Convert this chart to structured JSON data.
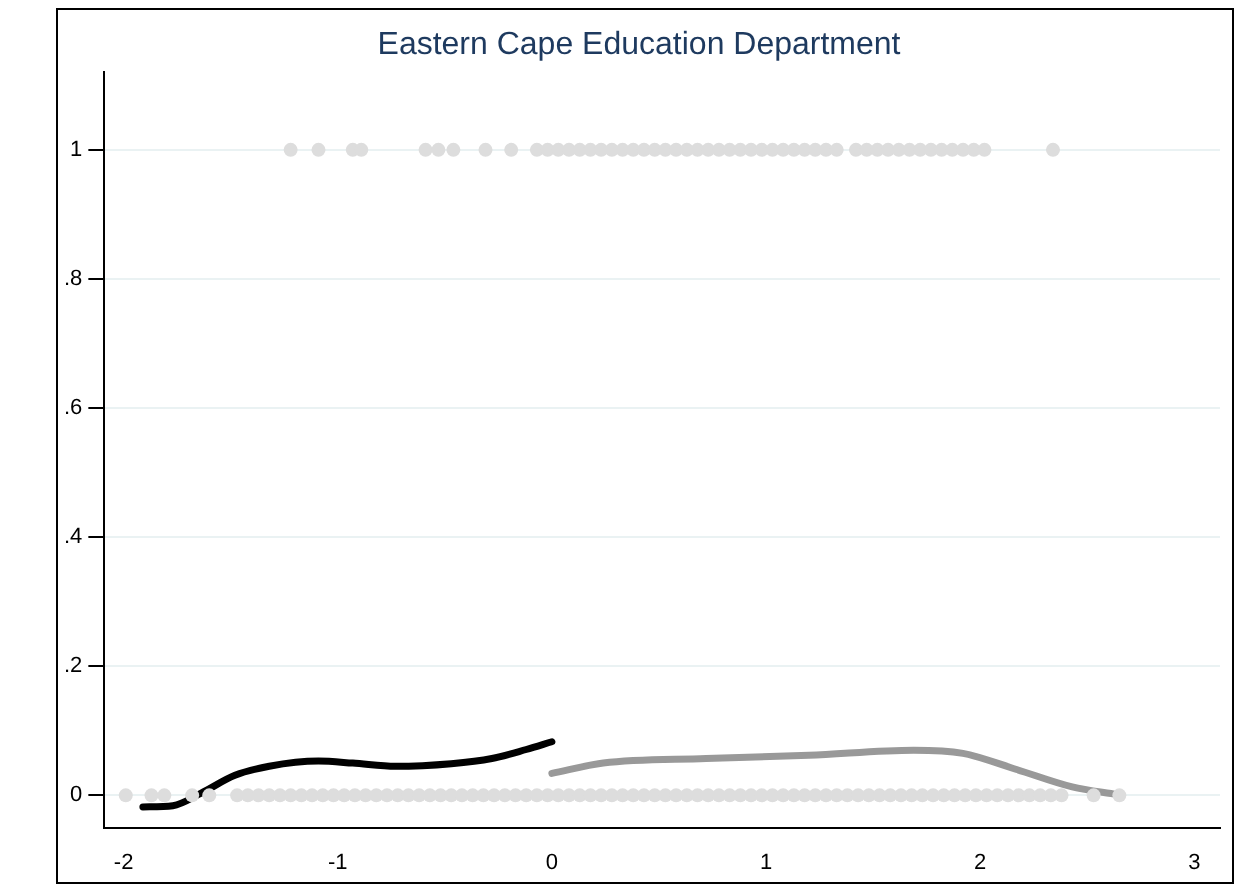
{
  "chart_data": {
    "type": "scatter",
    "title": "Eastern Cape Education Department",
    "xlim": [
      -2.09,
      3.12
    ],
    "ylim": [
      -0.05,
      1.12
    ],
    "xticks": [
      -2,
      -1,
      0,
      1,
      2,
      3
    ],
    "yticks": [
      0,
      {
        "value": 0.2,
        "label": ".2"
      },
      {
        "value": 0.4,
        "label": ".4"
      },
      {
        "value": 0.6,
        "label": ".6"
      },
      {
        "value": 0.8,
        "label": ".8"
      },
      1
    ],
    "grid": "y",
    "legend": false,
    "series": [
      {
        "type": "scatter",
        "marker": "circle",
        "color": "#dddddd",
        "x": [
          -1.99,
          -1.87,
          -1.81,
          -1.68,
          -1.6,
          -1.47,
          -1.42,
          -1.37,
          -1.32,
          -1.27,
          -1.22,
          -1.17,
          -1.12,
          -1.07,
          -1.02,
          -0.97,
          -0.92,
          -0.87,
          -0.82,
          -0.77,
          -0.72,
          -0.67,
          -0.62,
          -0.57,
          -0.52,
          -0.47,
          -0.42,
          -0.37,
          -0.32,
          -0.27,
          -0.22,
          -0.17,
          -0.12,
          -0.07,
          -0.02,
          0.03,
          0.08,
          0.13,
          0.18,
          0.23,
          0.28,
          0.33,
          0.38,
          0.43,
          0.48,
          0.53,
          0.58,
          0.63,
          0.68,
          0.73,
          0.78,
          0.83,
          0.88,
          0.93,
          0.98,
          1.03,
          1.08,
          1.13,
          1.18,
          1.23,
          1.28,
          1.33,
          1.38,
          1.43,
          1.48,
          1.53,
          1.58,
          1.63,
          1.68,
          1.73,
          1.78,
          1.83,
          1.88,
          1.93,
          1.98,
          2.03,
          2.08,
          2.13,
          2.18,
          2.23,
          2.28,
          2.33,
          2.38,
          2.53,
          2.65
        ],
        "values": [
          0,
          0,
          0,
          0,
          0,
          0,
          0,
          0,
          0,
          0,
          0,
          0,
          0,
          0,
          0,
          0,
          0,
          0,
          0,
          0,
          0,
          0,
          0,
          0,
          0,
          0,
          0,
          0,
          0,
          0,
          0,
          0,
          0,
          0,
          0,
          0,
          0,
          0,
          0,
          0,
          0,
          0,
          0,
          0,
          0,
          0,
          0,
          0,
          0,
          0,
          0,
          0,
          0,
          0,
          0,
          0,
          0,
          0,
          0,
          0,
          0,
          0,
          0,
          0,
          0,
          0,
          0,
          0,
          0,
          0,
          0,
          0,
          0,
          0,
          0,
          0,
          0,
          0,
          0,
          0,
          0,
          0,
          0,
          0,
          0
        ]
      },
      {
        "type": "scatter",
        "marker": "circle",
        "color": "#dddddd",
        "x": [
          -1.22,
          -1.09,
          -0.93,
          -0.89,
          -0.59,
          -0.53,
          -0.46,
          -0.31,
          -0.19,
          -0.07,
          -0.02,
          0.03,
          0.08,
          0.13,
          0.18,
          0.23,
          0.28,
          0.33,
          0.38,
          0.43,
          0.48,
          0.53,
          0.58,
          0.63,
          0.68,
          0.73,
          0.78,
          0.83,
          0.88,
          0.93,
          0.98,
          1.03,
          1.08,
          1.13,
          1.18,
          1.23,
          1.28,
          1.33,
          1.42,
          1.47,
          1.52,
          1.57,
          1.62,
          1.67,
          1.72,
          1.77,
          1.82,
          1.87,
          1.92,
          1.97,
          2.02,
          2.34
        ],
        "values": [
          1,
          1,
          1,
          1,
          1,
          1,
          1,
          1,
          1,
          1,
          1,
          1,
          1,
          1,
          1,
          1,
          1,
          1,
          1,
          1,
          1,
          1,
          1,
          1,
          1,
          1,
          1,
          1,
          1,
          1,
          1,
          1,
          1,
          1,
          1,
          1,
          1,
          1,
          1,
          1,
          1,
          1,
          1,
          1,
          1,
          1,
          1,
          1,
          1,
          1,
          1,
          1
        ]
      },
      {
        "type": "line",
        "color": "#000000",
        "x": [
          -1.91,
          -1.77,
          -1.64,
          -1.48,
          -1.32,
          -1.09,
          -0.93,
          -0.73,
          -0.47,
          -0.28,
          -0.12,
          0
        ],
        "values": [
          -0.018,
          -0.016,
          0.003,
          0.031,
          0.045,
          0.053,
          0.05,
          0.045,
          0.049,
          0.057,
          0.071,
          0.083
        ]
      },
      {
        "type": "line",
        "color": "#999999",
        "x": [
          0,
          0.24,
          0.72,
          1.2,
          1.69,
          1.92,
          2.17,
          2.43,
          2.64
        ],
        "values": [
          0.034,
          0.05,
          0.057,
          0.062,
          0.07,
          0.065,
          0.04,
          0.013,
          0.001
        ]
      }
    ]
  }
}
